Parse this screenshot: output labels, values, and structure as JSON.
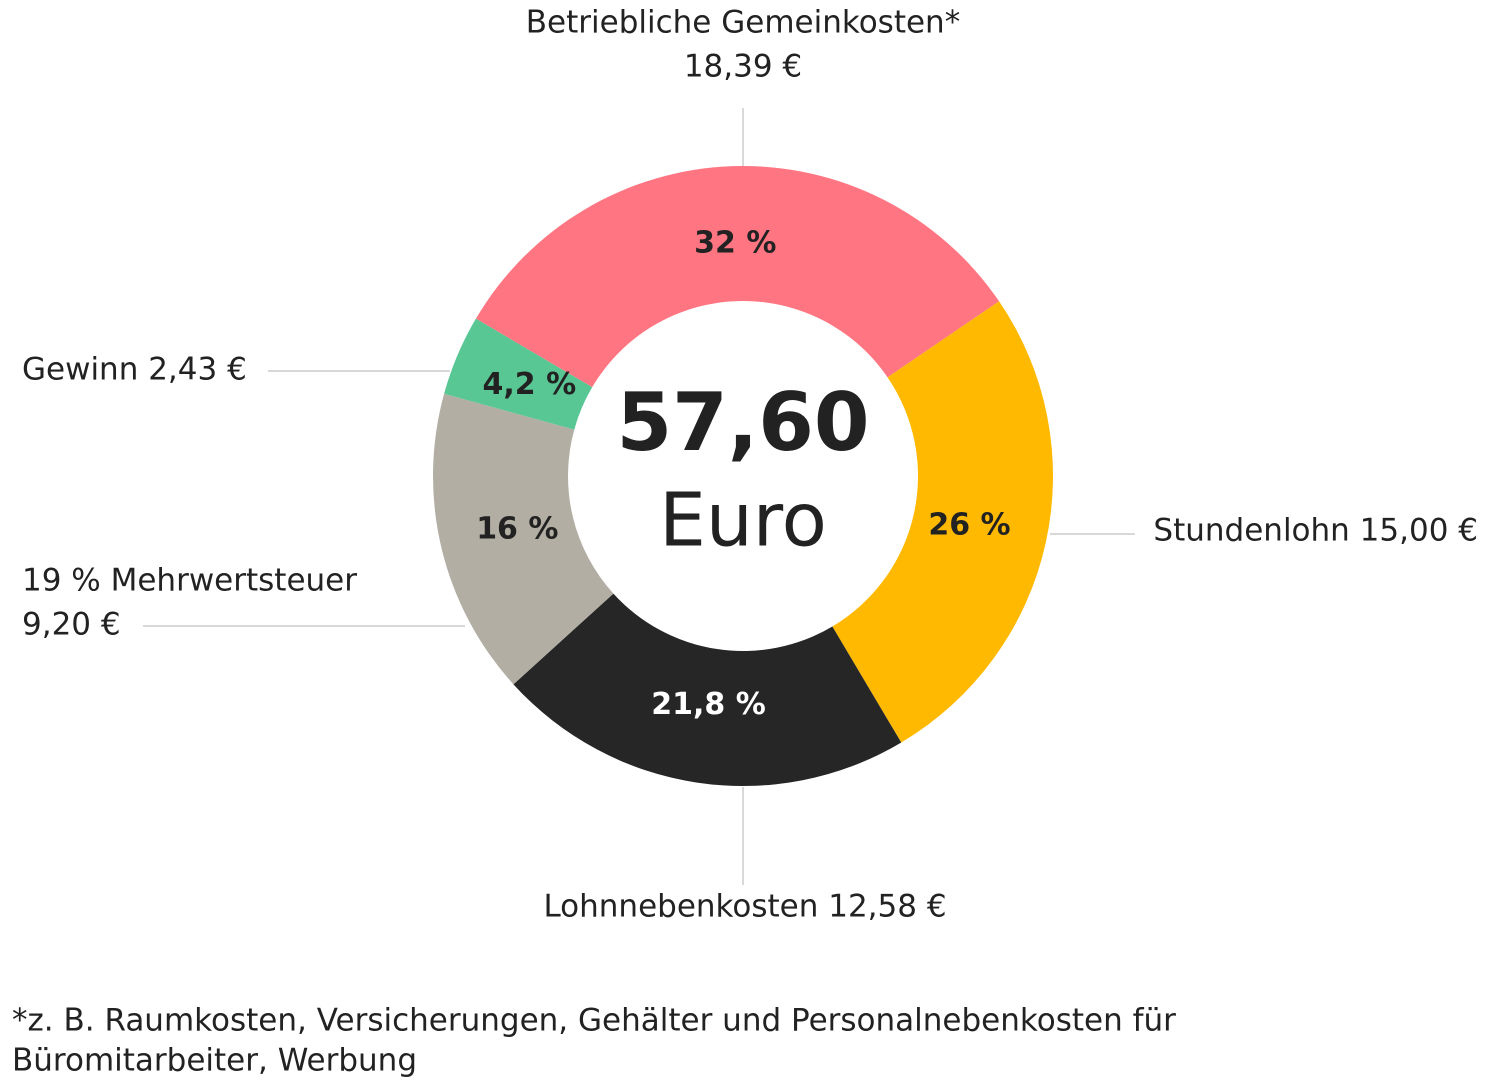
{
  "chart_data": {
    "type": "donut",
    "labels": [
      [
        "Betriebliche Gemeinkosten*",
        "18,39 €"
      ],
      [
        "Stundenlohn 15,00 €"
      ],
      [
        "Lohnnebenkosten 12,58 €"
      ],
      [
        "19 % Mehrwertsteuer",
        "9,20 €"
      ],
      [
        "Gewinn 2,43 €"
      ]
    ],
    "values": [
      32,
      26,
      21.8,
      16,
      4.2
    ],
    "value_labels": [
      "32 %",
      "26 %",
      "21,8 %",
      "16 %",
      "4,2 %"
    ],
    "colors": [
      "#ff7682",
      "#ffb900",
      "#262626",
      "#b2aea3",
      "#58c794"
    ],
    "center_value": "57,60",
    "center_unit": "Euro",
    "footnote": [
      "*z. B. Raumkosten, Versicherungen, Gehälter und Personalnebenkosten für",
      "Büromitarbeiter, Werbung"
    ]
  }
}
